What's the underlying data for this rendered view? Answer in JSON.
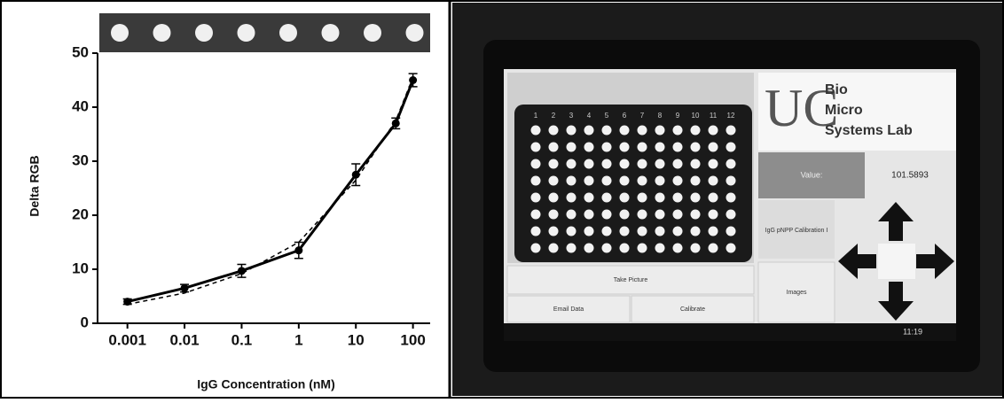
{
  "chart_data": {
    "type": "line",
    "xlabel": "IgG Concentration (nM)",
    "ylabel": "Delta RGB",
    "x": [
      0.001,
      0.01,
      0.1,
      1,
      10,
      50,
      100
    ],
    "series": [
      {
        "color": "#000000",
        "values": [
          4,
          6.5,
          9.7,
          13.5,
          27.5,
          37,
          45
        ],
        "errors": [
          0.5,
          0.7,
          1.2,
          1.5,
          2,
          1,
          1.2
        ]
      }
    ],
    "fit": {
      "color": "#000000",
      "values": [
        3.5,
        5.6,
        9.2,
        15,
        26.5,
        37.5,
        45.5
      ]
    },
    "xscale": "log",
    "xlim": [
      0.0003,
      200
    ],
    "xticks": [
      0.001,
      0.01,
      0.1,
      1,
      10,
      100
    ],
    "ylim": [
      0,
      50
    ],
    "yticks": [
      0,
      10,
      20,
      30,
      40,
      50
    ],
    "grid": false
  },
  "tablet": {
    "logo": [
      "Bio",
      "Micro",
      "Systems Lab"
    ],
    "value_label": "Value:",
    "value": "101.5893",
    "dropdown": "IgG pNPP Calibration I",
    "buttons": [
      "Take Picture",
      "Email Data",
      "Calibrate",
      "Images"
    ],
    "clock": "11:19",
    "plate_columns": [
      "1",
      "2",
      "3",
      "4",
      "5",
      "6",
      "7",
      "8",
      "9",
      "10",
      "11",
      "12"
    ]
  }
}
